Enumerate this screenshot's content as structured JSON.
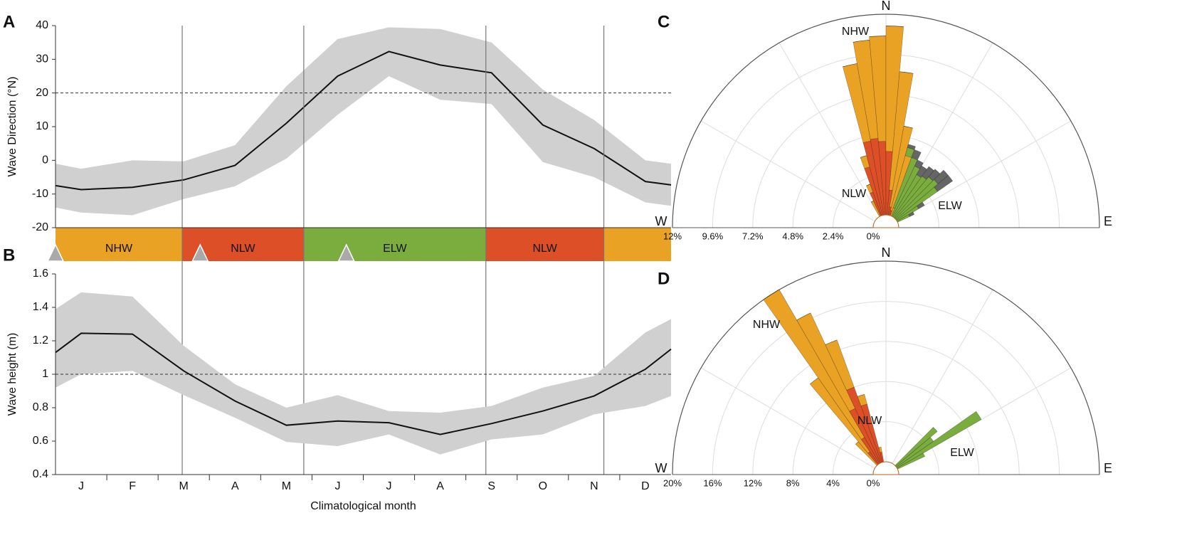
{
  "chart_data": [
    {
      "type": "line",
      "panel": "A",
      "ylabel": "Wave Direction (°N)",
      "x": [
        0.5,
        1,
        2,
        3,
        4,
        5,
        6,
        7,
        8,
        9,
        10,
        11,
        12,
        12.5
      ],
      "mean": [
        -7.5,
        -8.7,
        -8,
        -5.8,
        -1.5,
        11,
        25,
        32.3,
        28.3,
        26,
        10.5,
        3.5,
        -6.3,
        -7.3
      ],
      "upper": [
        -1,
        -2.5,
        0,
        -0.3,
        4.5,
        22,
        36,
        39.5,
        39,
        35,
        21,
        12,
        0,
        -1
      ],
      "lower": [
        -14,
        -15.5,
        -16.3,
        -11.5,
        -7.7,
        0.5,
        13.5,
        25,
        18,
        16.7,
        -0.5,
        -5,
        -12.5,
        -13.5
      ],
      "xlim": [
        0.5,
        12.5
      ],
      "ylim": [
        -20,
        40
      ],
      "yticks": [
        40,
        30,
        20,
        10,
        0,
        -10,
        -20
      ],
      "threshold": 20,
      "band_color": "#d0d0d1",
      "line_color": "#111111",
      "seasons": [
        {
          "name": "NHW",
          "start": 0.5,
          "end": 2.97,
          "color": "#e9a224"
        },
        {
          "name": "NLW",
          "start": 2.97,
          "end": 5.34,
          "color": "#dd5027"
        },
        {
          "name": "ELW",
          "start": 5.34,
          "end": 8.89,
          "color": "#7aad3e"
        },
        {
          "name": "NLW",
          "start": 8.89,
          "end": 11.19,
          "color": "#dd5027"
        },
        {
          "name": null,
          "start": 11.19,
          "end": 12.5,
          "color": "#e9a224"
        }
      ],
      "markers": [
        0.5,
        3.32,
        6.17
      ]
    },
    {
      "type": "line",
      "panel": "B",
      "ylabel": "Wave height (m)",
      "xlabel": "Climatological month",
      "x": [
        0.5,
        1,
        2,
        3,
        4,
        5,
        6,
        7,
        8,
        9,
        10,
        11,
        12,
        12.5
      ],
      "mean": [
        1.13,
        1.245,
        1.24,
        1.02,
        0.84,
        0.695,
        0.72,
        0.71,
        0.64,
        0.705,
        0.78,
        0.87,
        1.03,
        1.15
      ],
      "upper": [
        1.39,
        1.49,
        1.465,
        1.17,
        0.94,
        0.8,
        0.875,
        0.78,
        0.77,
        0.81,
        0.92,
        0.99,
        1.25,
        1.33
      ],
      "lower": [
        0.92,
        1.0,
        1.02,
        0.875,
        0.74,
        0.595,
        0.57,
        0.64,
        0.52,
        0.61,
        0.64,
        0.76,
        0.81,
        0.87
      ],
      "xlim": [
        0.5,
        12.5
      ],
      "ylim": [
        0.4,
        1.6
      ],
      "yticks": [
        1.6,
        1.4,
        1.2,
        1,
        0.8,
        0.6,
        0.4
      ],
      "xticks": [
        {
          "value": 1,
          "label": "J"
        },
        {
          "value": 2,
          "label": "F"
        },
        {
          "value": 3,
          "label": "M"
        },
        {
          "value": 4,
          "label": "A"
        },
        {
          "value": 5,
          "label": "M"
        },
        {
          "value": 6,
          "label": "J"
        },
        {
          "value": 7,
          "label": "J"
        },
        {
          "value": 8,
          "label": "A"
        },
        {
          "value": 9,
          "label": "S"
        },
        {
          "value": 10,
          "label": "O"
        },
        {
          "value": 11,
          "label": "N"
        },
        {
          "value": 12,
          "label": "D"
        }
      ],
      "xminorticks": [
        1.5,
        2.5,
        3.5,
        4.5,
        5.5,
        6.5,
        7.5,
        8.5,
        9.5,
        10.5,
        11.5
      ],
      "threshold": 1,
      "band_color": "#d0d0d1",
      "line_color": "#111111"
    },
    {
      "type": "rose",
      "panel": "C",
      "north": "N",
      "west": "W",
      "east": "E",
      "bin_centers": [
        -27.5,
        -22.5,
        -17.5,
        -12.5,
        -7.5,
        -2.5,
        2.5,
        7.5,
        12.5,
        17.5,
        22.5,
        27.5,
        32.5,
        37.5,
        42.5,
        47.5,
        52.5,
        57.5,
        62.5
      ],
      "bin_width": 5,
      "rlim": [
        0,
        12
      ],
      "rticks": [
        {
          "value": 12,
          "label": "12%"
        },
        {
          "value": 9.6,
          "label": "9.6%"
        },
        {
          "value": 7.2,
          "label": "7.2%"
        },
        {
          "value": 4.8,
          "label": "4.8%"
        },
        {
          "value": 2.4,
          "label": "2.4%"
        },
        {
          "value": 0,
          "label": "0%"
        }
      ],
      "series": [
        {
          "name": "NLW",
          "color": "#dd5027",
          "values": [
            0,
            1.5,
            3.0,
            4.5,
            4.6,
            4.4,
            3.8,
            1.5,
            0.5,
            0.3,
            0,
            0,
            0,
            0,
            0,
            0,
            0,
            0,
            0
          ]
        },
        {
          "name": "NHW",
          "color": "#e9a224",
          "values": [
            1.0,
            0.5,
            0.7,
            4.7,
            5.9,
            6.3,
            7.5,
            7.1,
            4.9,
            3.4,
            0.5,
            0,
            0,
            0,
            0,
            0,
            0,
            0,
            0
          ]
        },
        {
          "name": "ELW",
          "color": "#7aad3e",
          "values": [
            0,
            0,
            0,
            0,
            0,
            0,
            0,
            0,
            0,
            0.5,
            3.2,
            3.3,
            2.9,
            3.0,
            3.2,
            3.3,
            3.0,
            1.5,
            0.8
          ]
        },
        {
          "name": null,
          "color": "#666666",
          "values": [
            0,
            0,
            0,
            0,
            0,
            0,
            0,
            0,
            0,
            0.2,
            0.5,
            0.4,
            0.6,
            0.7,
            0.6,
            0.8,
            1.1,
            0.4,
            0.3
          ]
        }
      ]
    },
    {
      "type": "rose",
      "panel": "D",
      "north": "N",
      "west": "W",
      "east": "E",
      "bin_centers": [
        -42.5,
        -37.5,
        -32.5,
        -27.5,
        -22.5,
        -17.5,
        -12.5,
        47.5,
        52.5,
        57.5,
        62.5
      ],
      "bin_width": 5,
      "rlim": [
        0,
        20
      ],
      "rticks": [
        {
          "value": 20,
          "label": "20%"
        },
        {
          "value": 16,
          "label": "16%"
        },
        {
          "value": 12,
          "label": "12%"
        },
        {
          "value": 8,
          "label": "8%"
        },
        {
          "value": 4,
          "label": "4%"
        },
        {
          "value": 0,
          "label": "0%"
        }
      ],
      "series": [
        {
          "name": "NLW",
          "color": "#dd5027",
          "values": [
            0,
            1.5,
            3,
            6,
            8,
            6,
            1,
            0,
            0,
            0,
            0
          ]
        },
        {
          "name": "NHW",
          "color": "#e9a224",
          "values": [
            3,
            9,
            17,
            10.5,
            5,
            1,
            0.5,
            0,
            0,
            0,
            0
          ]
        },
        {
          "name": "ELW",
          "color": "#7aad3e",
          "values": [
            0,
            0,
            0,
            0,
            0,
            0,
            0,
            5.4,
            4.5,
            9.7,
            3
          ]
        }
      ]
    }
  ]
}
